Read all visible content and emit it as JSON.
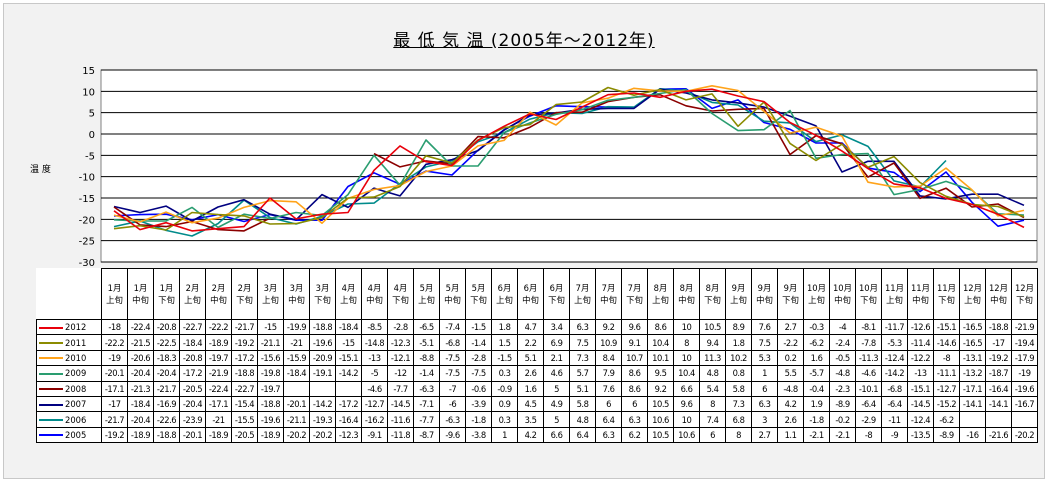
{
  "chart_data": {
    "type": "line",
    "title": "最 低 気 温 (2005年～2012年)",
    "ylabel": "温 度",
    "ylim": [
      -30,
      15
    ],
    "yticks": [
      15,
      10,
      5,
      0,
      -5,
      -10,
      -15,
      -20,
      -25,
      -30
    ],
    "grid": true,
    "legend": "data-table-left",
    "categories": [
      [
        "1月",
        "上旬"
      ],
      [
        "1月",
        "中旬"
      ],
      [
        "1月",
        "下旬"
      ],
      [
        "2月",
        "上旬"
      ],
      [
        "2月",
        "中旬"
      ],
      [
        "2月",
        "下旬"
      ],
      [
        "3月",
        "上旬"
      ],
      [
        "3月",
        "中旬"
      ],
      [
        "3月",
        "下旬"
      ],
      [
        "4月",
        "上旬"
      ],
      [
        "4月",
        "中旬"
      ],
      [
        "4月",
        "下旬"
      ],
      [
        "5月",
        "上旬"
      ],
      [
        "5月",
        "中旬"
      ],
      [
        "5月",
        "下旬"
      ],
      [
        "6月",
        "上旬"
      ],
      [
        "6月",
        "中旬"
      ],
      [
        "6月",
        "下旬"
      ],
      [
        "7月",
        "上旬"
      ],
      [
        "7月",
        "中旬"
      ],
      [
        "7月",
        "下旬"
      ],
      [
        "8月",
        "上旬"
      ],
      [
        "8月",
        "中旬"
      ],
      [
        "8月",
        "下旬"
      ],
      [
        "9月",
        "上旬"
      ],
      [
        "9月",
        "中旬"
      ],
      [
        "9月",
        "下旬"
      ],
      [
        "10月",
        "上旬"
      ],
      [
        "10月",
        "中旬"
      ],
      [
        "10月",
        "下旬"
      ],
      [
        "11月",
        "上旬"
      ],
      [
        "11月",
        "中旬"
      ],
      [
        "11月",
        "下旬"
      ],
      [
        "12月",
        "上旬"
      ],
      [
        "12月",
        "中旬"
      ],
      [
        "12月",
        "下旬"
      ]
    ],
    "series": [
      {
        "name": "2012",
        "color": "#e8000b",
        "values": [
          -18,
          -22.4,
          -20.8,
          -22.7,
          -22.2,
          -21.7,
          -15.0,
          -19.9,
          -18.8,
          -18.4,
          -8.5,
          -2.8,
          -6.5,
          -7.4,
          -1.5,
          1.8,
          4.7,
          3.4,
          6.3,
          9.2,
          9.6,
          8.6,
          10.0,
          10.5,
          8.9,
          7.6,
          2.7,
          -0.3,
          -4.0,
          -8.1,
          -11.7,
          -12.6,
          -15.1,
          -16.5,
          -18.8,
          -21.9
        ]
      },
      {
        "name": "2011",
        "color": "#8b8b00",
        "values": [
          -22.2,
          -21.5,
          -22.5,
          -18.4,
          -18.9,
          -19.2,
          -21.1,
          -21.0,
          -19.6,
          -15.0,
          -14.8,
          -12.3,
          -5.1,
          -6.8,
          -1.4,
          1.5,
          2.2,
          6.9,
          7.5,
          10.9,
          9.1,
          10.4,
          8.0,
          9.4,
          1.8,
          7.5,
          -2.2,
          -6.2,
          -2.4,
          -7.8,
          -5.3,
          -11.4,
          -14.6,
          -16.5,
          -17.0,
          -19.4
        ]
      },
      {
        "name": "2010",
        "color": "#ffa31a",
        "values": [
          -19.0,
          -20.6,
          -18.3,
          -20.8,
          -19.7,
          -17.2,
          -15.6,
          -15.9,
          -20.9,
          -15.1,
          -13.0,
          -12.1,
          -8.8,
          -7.5,
          -2.8,
          -1.5,
          5.1,
          2.1,
          7.3,
          8.4,
          10.7,
          10.1,
          10.0,
          11.3,
          10.2,
          5.3,
          0.2,
          1.6,
          -0.5,
          -11.3,
          -12.4,
          -12.2,
          -8.0,
          -13.1,
          -19.2,
          -17.9
        ]
      },
      {
        "name": "2009",
        "color": "#2a9d70",
        "values": [
          -20.1,
          -20.4,
          -20.4,
          -17.2,
          -21.9,
          -18.8,
          -19.8,
          -18.4,
          -19.1,
          -14.2,
          -5.0,
          -12.0,
          -1.4,
          -7.5,
          -7.5,
          0.3,
          2.6,
          4.6,
          5.7,
          7.9,
          8.6,
          9.5,
          10.4,
          4.8,
          0.8,
          1.0,
          5.5,
          -5.7,
          -4.8,
          -4.6,
          -14.2,
          -13.0,
          -11.1,
          -13.2,
          -18.7,
          -19.0
        ]
      },
      {
        "name": "2008",
        "color": "#8b0000",
        "values": [
          -17.1,
          -21.3,
          -21.7,
          -20.5,
          -22.4,
          -22.7,
          -19.7,
          null,
          null,
          null,
          -4.6,
          -7.7,
          -6.3,
          -7.0,
          -0.6,
          -0.9,
          1.6,
          5.0,
          5.1,
          7.6,
          8.6,
          9.2,
          6.6,
          5.4,
          5.8,
          6.0,
          -4.8,
          -0.4,
          -2.3,
          -10.1,
          -6.8,
          -15.1,
          -12.7,
          -17.1,
          -16.4,
          -19.6
        ]
      },
      {
        "name": "2007",
        "color": "#000080",
        "values": [
          -17.0,
          -18.4,
          -16.9,
          -20.4,
          -17.1,
          -15.4,
          -18.8,
          -20.1,
          -14.2,
          -17.2,
          -12.7,
          -14.5,
          -7.1,
          -6.0,
          -3.9,
          0.9,
          4.5,
          4.9,
          5.8,
          6.0,
          6.0,
          10.5,
          9.6,
          8.0,
          7.3,
          6.3,
          4.2,
          1.9,
          -8.9,
          -6.4,
          -6.4,
          -14.5,
          -15.2,
          -14.1,
          -14.1,
          -16.7
        ]
      },
      {
        "name": "2006",
        "color": "#008b8b",
        "values": [
          -21.7,
          -20.4,
          -22.6,
          -23.9,
          -21.0,
          -15.5,
          -19.6,
          -21.1,
          -19.3,
          -16.4,
          -16.2,
          -11.6,
          -7.7,
          -6.3,
          -1.8,
          0.3,
          3.5,
          5.0,
          4.8,
          6.4,
          6.3,
          10.6,
          10.0,
          7.4,
          6.8,
          3.0,
          2.6,
          -1.8,
          -0.2,
          -2.9,
          -11.0,
          -12.4,
          -6.2,
          null,
          null,
          null
        ]
      },
      {
        "name": "2005",
        "color": "#0000ff",
        "values": [
          -19.2,
          -18.9,
          -18.8,
          -20.1,
          -18.9,
          -20.5,
          -18.9,
          -20.2,
          -20.2,
          -12.3,
          -9.1,
          -11.8,
          -8.7,
          -9.6,
          -3.8,
          1.0,
          4.2,
          6.6,
          6.4,
          6.3,
          6.2,
          10.5,
          10.6,
          6.0,
          8.0,
          2.7,
          1.1,
          -2.1,
          -2.1,
          -8.0,
          -9.0,
          -13.5,
          -8.9,
          -16.0,
          -21.6,
          -20.2
        ]
      }
    ]
  }
}
